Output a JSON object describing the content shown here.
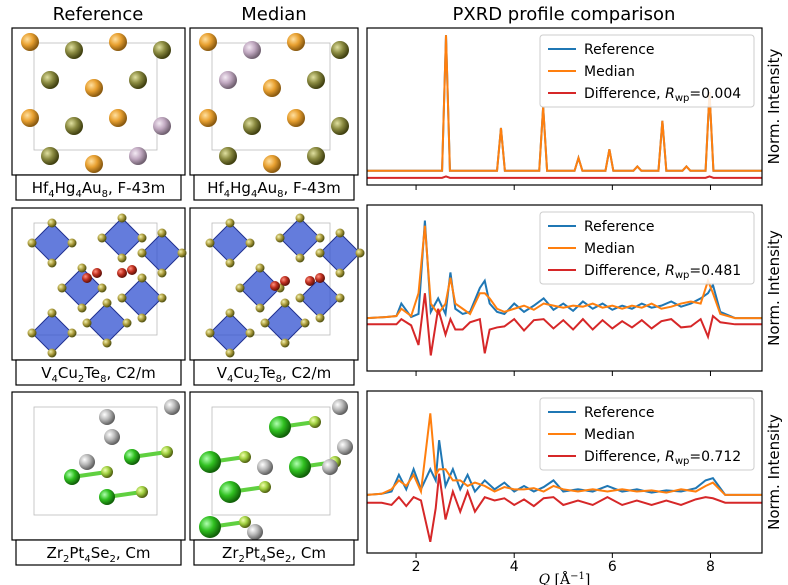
{
  "columns": [
    "Reference",
    "Median",
    "PXRD profile comparison"
  ],
  "rows": [
    {
      "reference_label": [
        "Hf",
        "4",
        "Hg",
        "4",
        "Au",
        "8",
        ", F-43m"
      ],
      "median_label": [
        "Hf",
        "4",
        "Hg",
        "4",
        "Au",
        "8",
        ", F-43m"
      ]
    },
    {
      "reference_label": [
        "V",
        "4",
        "Cu",
        "2",
        "Te",
        "8",
        ", C2/m"
      ],
      "median_label": [
        "V",
        "4",
        "Cu",
        "2",
        "Te",
        "8",
        ", C2/m"
      ]
    },
    {
      "reference_label": [
        "Zr",
        "2",
        "Pt",
        "4",
        "Se",
        "2",
        ", Cm"
      ],
      "median_label": [
        "Zr",
        "2",
        "Pt",
        "4",
        "Se",
        "2",
        ", Cm"
      ]
    }
  ],
  "chart_data": [
    {
      "type": "line",
      "ylabel": "Norm. Intensity",
      "legend": "upper right",
      "xlim": [
        1.0,
        9.05
      ],
      "ylim": [
        -0.05,
        1.05
      ],
      "xticks": [
        2,
        4,
        6,
        8
      ],
      "xticklabels": false,
      "x": [
        1.0,
        2.53,
        2.61,
        2.69,
        3.65,
        3.73,
        3.81,
        4.51,
        4.59,
        4.67,
        5.23,
        5.31,
        5.39,
        5.86,
        5.94,
        6.02,
        6.43,
        6.51,
        6.59,
        6.94,
        7.02,
        7.1,
        7.43,
        7.51,
        7.59,
        7.9,
        7.98,
        8.06,
        9.05
      ],
      "series": [
        {
          "name": "Reference",
          "color": "#1f77b4",
          "values": [
            0.05,
            0.05,
            1.0,
            0.05,
            0.05,
            0.35,
            0.05,
            0.05,
            0.5,
            0.05,
            0.05,
            0.14,
            0.05,
            0.05,
            0.2,
            0.05,
            0.05,
            0.08,
            0.05,
            0.05,
            0.4,
            0.05,
            0.05,
            0.08,
            0.05,
            0.05,
            0.6,
            0.05,
            0.05
          ]
        },
        {
          "name": "Median",
          "color": "#ff7f0e",
          "values": [
            0.05,
            0.05,
            1.0,
            0.05,
            0.05,
            0.35,
            0.05,
            0.05,
            0.5,
            0.05,
            0.05,
            0.14,
            0.05,
            0.05,
            0.2,
            0.05,
            0.05,
            0.08,
            0.05,
            0.05,
            0.4,
            0.05,
            0.05,
            0.08,
            0.05,
            0.05,
            0.6,
            0.05,
            0.05
          ]
        },
        {
          "name": [
            "Difference, ",
            "R",
            "wp",
            "=0.004"
          ],
          "color": "#d62728",
          "values": [
            0,
            0,
            0.01,
            0,
            0,
            0,
            0,
            0,
            0,
            0,
            0,
            0,
            0,
            0,
            0,
            0,
            0,
            0,
            0,
            0,
            0,
            0,
            0,
            0,
            0,
            0,
            0.01,
            0,
            0
          ]
        }
      ]
    },
    {
      "type": "line",
      "ylabel": "Norm. Intensity",
      "legend": "upper right",
      "xlim": [
        1.0,
        9.05
      ],
      "ylim": [
        -0.45,
        1.15
      ],
      "xticks": [
        2,
        4,
        6,
        8
      ],
      "xticklabels": false,
      "x": [
        1.0,
        1.4,
        1.6,
        1.7,
        1.9,
        2.05,
        2.18,
        2.3,
        2.45,
        2.6,
        2.7,
        2.8,
        2.95,
        3.1,
        3.3,
        3.4,
        3.5,
        3.65,
        3.8,
        4.0,
        4.2,
        4.4,
        4.6,
        4.8,
        5.0,
        5.2,
        5.4,
        5.6,
        5.8,
        6.0,
        6.2,
        6.4,
        6.6,
        6.8,
        7.0,
        7.2,
        7.4,
        7.6,
        7.8,
        7.95,
        8.05,
        8.2,
        8.5,
        9.05
      ],
      "series": [
        {
          "name": "Reference",
          "color": "#1f77b4",
          "values": [
            0.06,
            0.07,
            0.08,
            0.2,
            0.07,
            0.1,
            1.0,
            0.12,
            0.25,
            0.1,
            0.5,
            0.15,
            0.1,
            0.12,
            0.35,
            0.42,
            0.2,
            0.12,
            0.1,
            0.2,
            0.12,
            0.18,
            0.25,
            0.14,
            0.2,
            0.13,
            0.22,
            0.15,
            0.2,
            0.14,
            0.18,
            0.15,
            0.2,
            0.16,
            0.18,
            0.22,
            0.17,
            0.2,
            0.25,
            0.3,
            0.38,
            0.12,
            0.06,
            0.06
          ]
        },
        {
          "name": "Median",
          "color": "#ff7f0e",
          "values": [
            0.06,
            0.07,
            0.08,
            0.15,
            0.08,
            0.3,
            0.95,
            0.2,
            0.1,
            0.2,
            0.45,
            0.2,
            0.15,
            0.1,
            0.3,
            0.3,
            0.25,
            0.15,
            0.12,
            0.15,
            0.18,
            0.14,
            0.2,
            0.18,
            0.16,
            0.18,
            0.17,
            0.2,
            0.16,
            0.18,
            0.15,
            0.18,
            0.16,
            0.2,
            0.15,
            0.17,
            0.2,
            0.22,
            0.2,
            0.42,
            0.3,
            0.1,
            0.06,
            0.06
          ]
        },
        {
          "name": [
            "Difference, ",
            "R",
            "wp",
            "=0.481"
          ],
          "color": "#d62728",
          "values": [
            0,
            0,
            0,
            0.05,
            -0.01,
            -0.2,
            0.3,
            -0.3,
            0.15,
            -0.1,
            0.05,
            -0.05,
            -0.05,
            0.02,
            0.05,
            -0.28,
            -0.05,
            -0.03,
            -0.02,
            0.05,
            -0.06,
            0.04,
            0.05,
            -0.04,
            0.04,
            -0.05,
            0.05,
            -0.05,
            0.04,
            -0.04,
            0.03,
            -0.03,
            0.04,
            -0.04,
            0.03,
            0.05,
            -0.03,
            -0.02,
            0.05,
            -0.12,
            0.08,
            0.02,
            0,
            0
          ]
        }
      ]
    },
    {
      "type": "line",
      "ylabel": "Norm. Intensity",
      "legend": "upper right",
      "xlabel": [
        "Q",
        " [Å",
        "−1",
        "]"
      ],
      "xlim": [
        1.0,
        9.05
      ],
      "ylim": [
        -0.45,
        1.0
      ],
      "xticks": [
        2,
        4,
        6,
        8
      ],
      "xticklabels": true,
      "x": [
        1.0,
        1.3,
        1.5,
        1.65,
        1.8,
        1.95,
        2.1,
        2.29,
        2.4,
        2.47,
        2.6,
        2.75,
        2.9,
        3.05,
        3.2,
        3.4,
        3.6,
        3.8,
        4.0,
        4.2,
        4.4,
        4.6,
        4.8,
        5.0,
        5.3,
        5.6,
        5.9,
        6.2,
        6.5,
        6.8,
        7.1,
        7.4,
        7.7,
        7.9,
        8.05,
        8.3,
        9.05
      ],
      "series": [
        {
          "name": "Reference",
          "color": "#1f77b4",
          "values": [
            0.07,
            0.08,
            0.1,
            0.25,
            0.12,
            0.3,
            0.12,
            0.3,
            0.2,
            0.56,
            0.15,
            0.3,
            0.12,
            0.25,
            0.1,
            0.2,
            0.12,
            0.18,
            0.1,
            0.15,
            0.1,
            0.14,
            0.2,
            0.1,
            0.12,
            0.1,
            0.15,
            0.1,
            0.12,
            0.09,
            0.11,
            0.1,
            0.13,
            0.2,
            0.22,
            0.07,
            0.07
          ]
        },
        {
          "name": "Median",
          "color": "#ff7f0e",
          "values": [
            0.07,
            0.08,
            0.12,
            0.2,
            0.15,
            0.25,
            0.1,
            0.8,
            0.25,
            0.3,
            0.3,
            0.2,
            0.2,
            0.15,
            0.18,
            0.15,
            0.1,
            0.14,
            0.12,
            0.12,
            0.13,
            0.1,
            0.15,
            0.12,
            0.1,
            0.12,
            0.1,
            0.12,
            0.1,
            0.11,
            0.09,
            0.12,
            0.1,
            0.15,
            0.18,
            0.07,
            0.07
          ]
        },
        {
          "name": [
            "Difference, ",
            "R",
            "wp",
            "=0.712"
          ],
          "color": "#d62728",
          "values": [
            0,
            0,
            -0.02,
            0.05,
            -0.03,
            0.05,
            0.02,
            -0.35,
            -0.05,
            0.26,
            -0.15,
            0.1,
            -0.08,
            0.1,
            -0.08,
            0.05,
            0.02,
            0.04,
            -0.02,
            0.03,
            -0.03,
            0.04,
            0.05,
            -0.02,
            0.02,
            -0.02,
            0.05,
            -0.02,
            0.02,
            -0.02,
            0.02,
            -0.02,
            0.03,
            0.05,
            0.04,
            0,
            0
          ]
        }
      ]
    }
  ]
}
